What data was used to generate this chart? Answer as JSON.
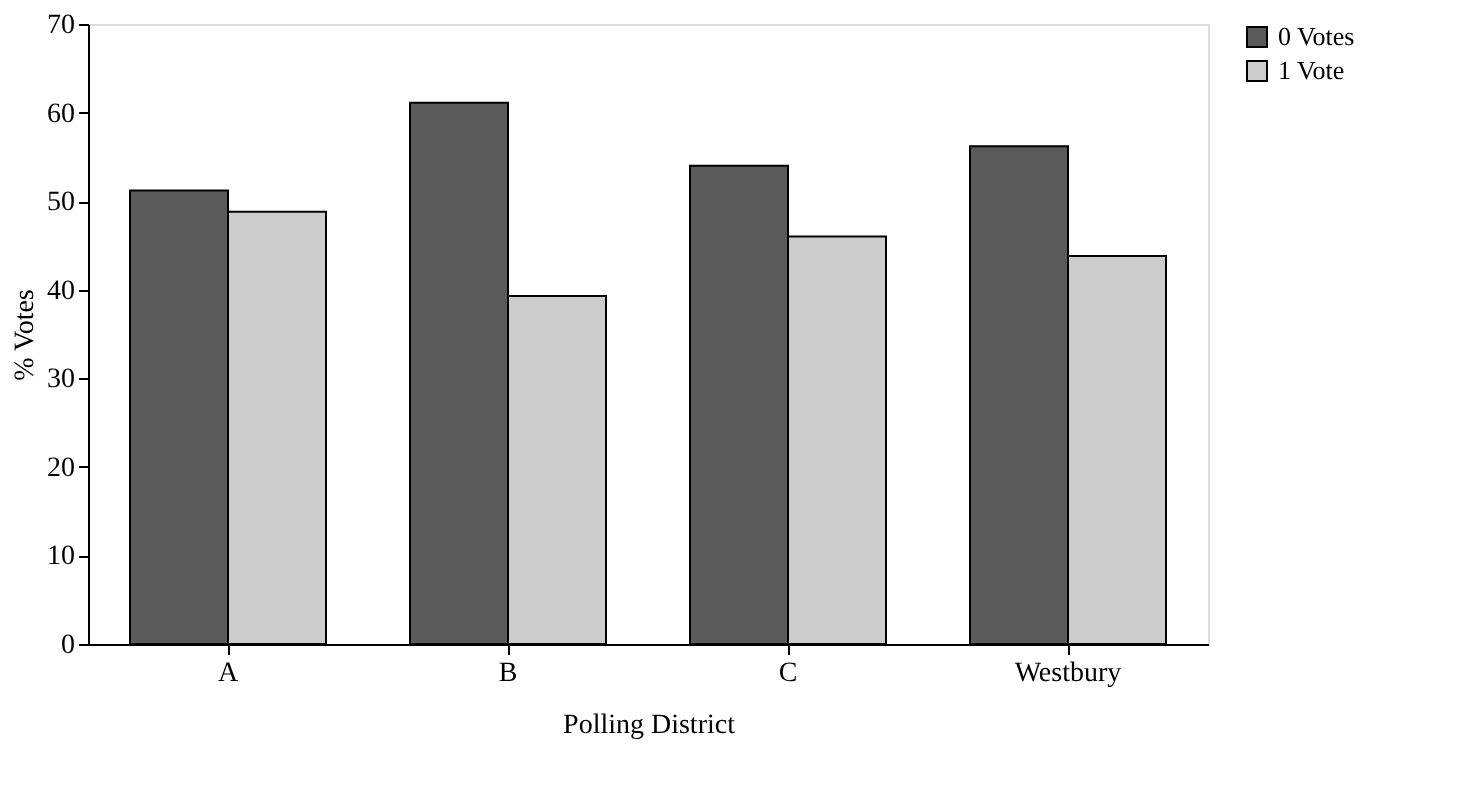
{
  "chart_data": {
    "type": "bar",
    "xlabel": "Polling District",
    "ylabel": "% Votes",
    "categories": [
      "A",
      "B",
      "C",
      "Westbury"
    ],
    "series": [
      {
        "name": "0 Votes",
        "color": "#5a5a5a",
        "values": [
          51.2,
          61.1,
          54.0,
          56.2
        ]
      },
      {
        "name": "1 Vote",
        "color": "#cccccc",
        "values": [
          48.8,
          39.3,
          46.0,
          43.8
        ]
      }
    ],
    "ylim": [
      0,
      70
    ],
    "yticks": [
      0,
      10,
      20,
      30,
      40,
      50,
      60,
      70
    ],
    "grid": false,
    "legend": "right"
  }
}
